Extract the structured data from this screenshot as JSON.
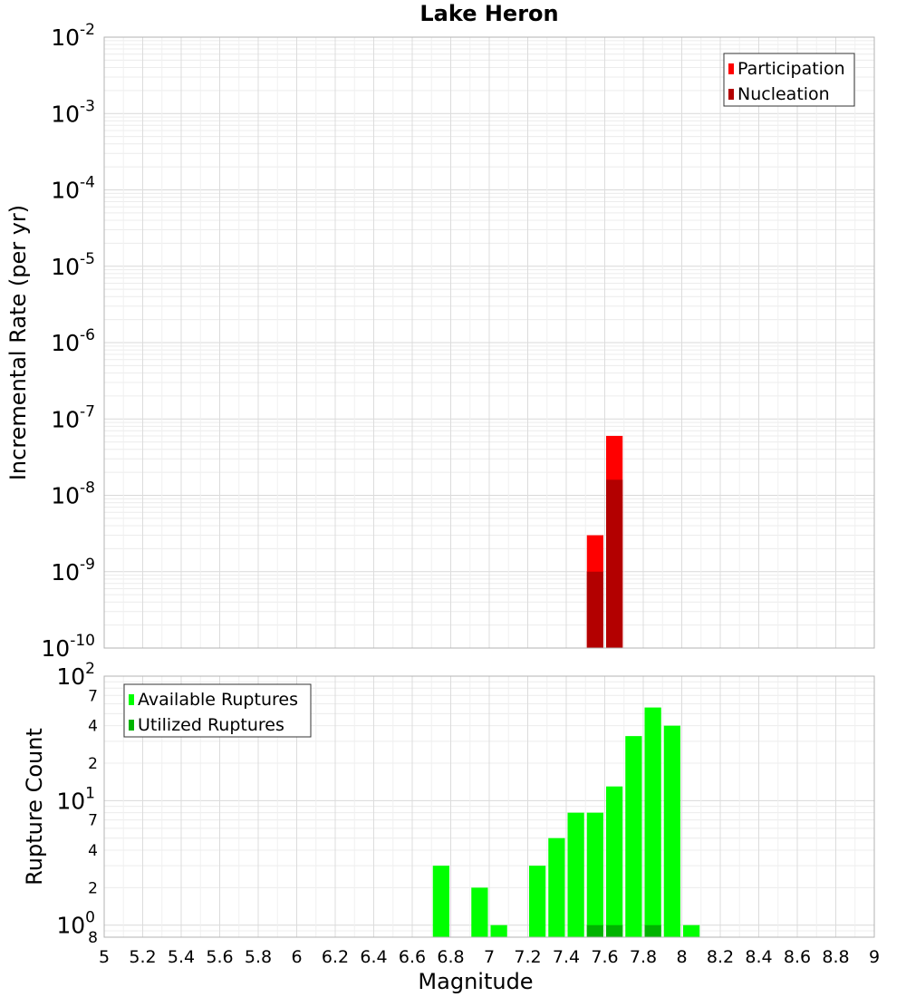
{
  "chart_data": {
    "title": "Lake Heron",
    "xlabel": "Magnitude",
    "xlim": [
      5,
      9
    ],
    "x_ticks": [
      "5",
      "5.2",
      "5.4",
      "5.6",
      "5.8",
      "6",
      "6.2",
      "6.4",
      "6.6",
      "6.8",
      "7",
      "7.2",
      "7.4",
      "7.6",
      "7.8",
      "8",
      "8.2",
      "8.4",
      "8.6",
      "8.8",
      "9"
    ],
    "bin_width": 0.1,
    "panels": [
      {
        "type": "bar",
        "ylabel": "Incremental Rate (per yr)",
        "yscale": "log",
        "ylim": [
          1e-10,
          0.01
        ],
        "y_major_ticks": [
          {
            "base": "10",
            "exp": "-10",
            "value": 1e-10
          },
          {
            "base": "10",
            "exp": "-9",
            "value": 1e-09
          },
          {
            "base": "10",
            "exp": "-8",
            "value": 1e-08
          },
          {
            "base": "10",
            "exp": "-7",
            "value": 1e-07
          },
          {
            "base": "10",
            "exp": "-6",
            "value": 1e-06
          },
          {
            "base": "10",
            "exp": "-5",
            "value": 1e-05
          },
          {
            "base": "10",
            "exp": "-4",
            "value": 0.0001
          },
          {
            "base": "10",
            "exp": "-3",
            "value": 0.001
          },
          {
            "base": "10",
            "exp": "-2",
            "value": 0.01
          }
        ],
        "y_minor_ticks": [],
        "grid": true,
        "legend_position": "top-right",
        "series": [
          {
            "name": "Participation",
            "color": "#ff0000",
            "x": [
              7.55,
              7.65
            ],
            "values": [
              3e-09,
              6e-08
            ]
          },
          {
            "name": "Nucleation",
            "color": "#b30000",
            "x": [
              7.55,
              7.65
            ],
            "values": [
              1e-09,
              1.6e-08
            ]
          }
        ]
      },
      {
        "type": "bar",
        "ylabel": "Rupture Count",
        "yscale": "log",
        "ylim": [
          0.8,
          100
        ],
        "y_major_ticks": [
          {
            "base": "10",
            "exp": "0",
            "value": 1
          },
          {
            "base": "10",
            "exp": "1",
            "value": 10
          },
          {
            "base": "10",
            "exp": "2",
            "value": 100
          }
        ],
        "y_minor_ticks": [
          {
            "label": "8",
            "value": 0.8
          },
          {
            "label": "2",
            "value": 2
          },
          {
            "label": "4",
            "value": 4
          },
          {
            "label": "7",
            "value": 7
          },
          {
            "label": "2",
            "value": 20
          },
          {
            "label": "4",
            "value": 40
          },
          {
            "label": "7",
            "value": 70
          }
        ],
        "grid": true,
        "legend_position": "top-left",
        "series": [
          {
            "name": "Available Ruptures",
            "color": "#00ff00",
            "x": [
              6.75,
              6.95,
              7.05,
              7.25,
              7.35,
              7.45,
              7.55,
              7.65,
              7.75,
              7.85,
              7.95,
              8.05
            ],
            "values": [
              3,
              2,
              1,
              3,
              5,
              8,
              8,
              13,
              33,
              56,
              40,
              1
            ]
          },
          {
            "name": "Utilized Ruptures",
            "color": "#00b300",
            "x": [
              7.55,
              7.65,
              7.85
            ],
            "values": [
              1,
              1,
              1
            ]
          }
        ]
      }
    ]
  }
}
